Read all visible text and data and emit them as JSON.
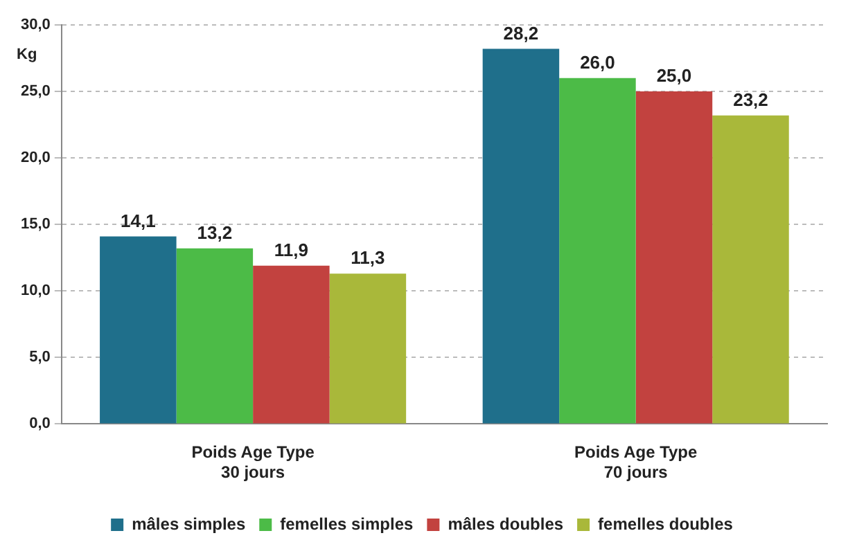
{
  "chart_data": {
    "type": "bar",
    "ylabel": "Kg",
    "categories": [
      "Poids Age Type\n30 jours",
      "Poids Age Type\n70 jours"
    ],
    "series": [
      {
        "name": "mâles simples",
        "color": "#1f6f8b",
        "values": [
          14.1,
          28.2
        ],
        "value_labels": [
          "14,1",
          "28,2"
        ]
      },
      {
        "name": "femelles simples",
        "color": "#4cbb47",
        "values": [
          13.2,
          26.0
        ],
        "value_labels": [
          "13,2",
          "26,0"
        ]
      },
      {
        "name": "mâles doubles",
        "color": "#c2423f",
        "values": [
          11.9,
          25.0
        ],
        "value_labels": [
          "11,9",
          "25,0"
        ]
      },
      {
        "name": "femelles doubles",
        "color": "#a9b83a",
        "values": [
          11.3,
          23.2
        ],
        "value_labels": [
          "11,3",
          "23,2"
        ]
      }
    ],
    "ylim": [
      0,
      30
    ],
    "yticks": [
      {
        "value": 0,
        "label": "0,0"
      },
      {
        "value": 5,
        "label": "5,0"
      },
      {
        "value": 10,
        "label": "10,0"
      },
      {
        "value": 15,
        "label": "15,0"
      },
      {
        "value": 20,
        "label": "20,0"
      },
      {
        "value": 25,
        "label": "25,0"
      },
      {
        "value": 30,
        "label": "30,0"
      }
    ],
    "grid": "y",
    "legend": "bottom"
  }
}
